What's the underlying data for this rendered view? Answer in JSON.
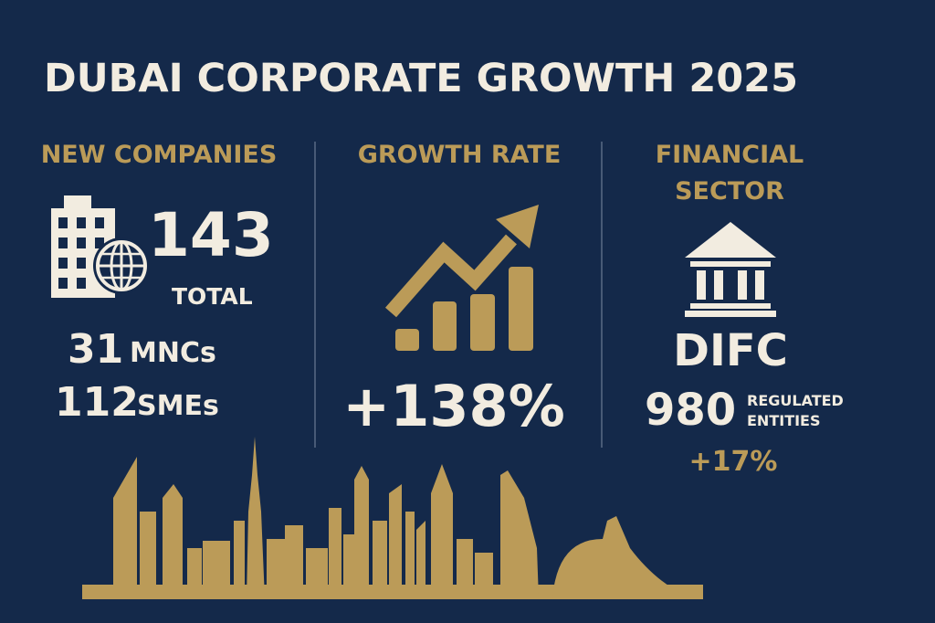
{
  "header": {
    "title": "DUBAI CORPORATE GROWTH 2025"
  },
  "new_companies": {
    "heading": "NEW COMPANIES",
    "total": 143,
    "total_label": "TOTAL",
    "breakdown": [
      {
        "value": 31,
        "label": "MNCs"
      },
      {
        "value": 112,
        "label": "SMEs"
      }
    ]
  },
  "growth_rate": {
    "heading": "GROWTH RATE",
    "value": "+138%"
  },
  "financial_sector": {
    "heading": [
      "FINANCIAL",
      "SECTOR"
    ],
    "name": "DIFC",
    "entities": 980,
    "entities_label": [
      "REGULATED",
      "ENTITIES"
    ],
    "change": "+17%"
  }
}
